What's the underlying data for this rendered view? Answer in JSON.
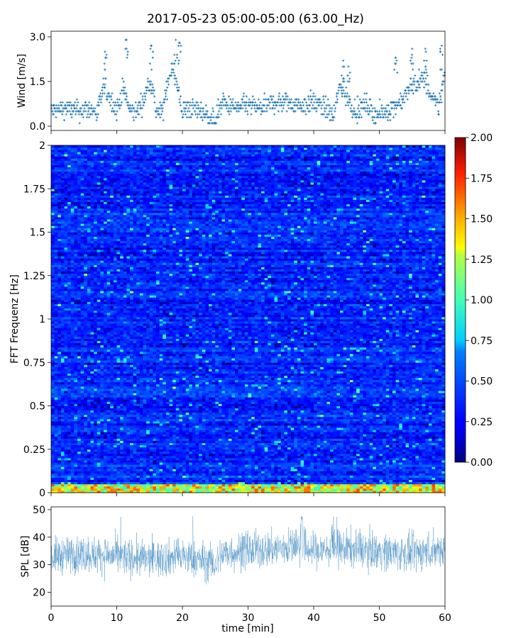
{
  "title": "2017-05-23 05:00-05:00 (63.00_Hz)",
  "chart_data": [
    {
      "id": "wind",
      "type": "scatter",
      "ylabel": "Wind [m/s]",
      "ylim": [
        0,
        3.0
      ],
      "yticks": [
        "0.0",
        "1.5",
        "3.0"
      ],
      "xlim": [
        0,
        60
      ],
      "marker": "+",
      "color": "#1f77b4",
      "x_profile": [
        0,
        2,
        4,
        6,
        7,
        8,
        9,
        10,
        11,
        12,
        13,
        14,
        15,
        15.5,
        16,
        17,
        18,
        18.5,
        19,
        20,
        21,
        23,
        24,
        25,
        26,
        27,
        28,
        30,
        32,
        34,
        36,
        38,
        40,
        42,
        43,
        44,
        45,
        46,
        47,
        48,
        49,
        50,
        52,
        54,
        55,
        56,
        57,
        58,
        58.5,
        59,
        60
      ],
      "y_profile": [
        0.5,
        0.6,
        0.5,
        0.6,
        0.4,
        1.3,
        1.0,
        0.5,
        1.3,
        0.5,
        0.5,
        0.8,
        1.6,
        1.2,
        0.5,
        0.5,
        1.7,
        2.1,
        1.5,
        0.5,
        0.6,
        0.5,
        0.3,
        0.2,
        0.8,
        0.7,
        0.6,
        0.7,
        0.6,
        0.8,
        0.8,
        0.7,
        0.8,
        0.6,
        0.3,
        1.4,
        1.0,
        0.6,
        0.5,
        0.8,
        0.4,
        0.4,
        0.6,
        1.0,
        1.4,
        1.5,
        1.6,
        0.9,
        0.8,
        0.6,
        1.8
      ],
      "peaks": [
        [
          8.2,
          2.5
        ],
        [
          11.5,
          2.9
        ],
        [
          15.3,
          2.7
        ],
        [
          19.0,
          2.9
        ],
        [
          19.6,
          2.8
        ],
        [
          44.5,
          2.2
        ],
        [
          45.3,
          2.0
        ],
        [
          52.5,
          2.3
        ],
        [
          55.0,
          2.6
        ],
        [
          57.0,
          2.6
        ],
        [
          59.5,
          2.7
        ]
      ]
    },
    {
      "id": "spectrogram",
      "type": "heatmap",
      "ylabel": "FFT Frequenz [Hz]",
      "ylim": [
        0,
        2
      ],
      "yticks": [
        "0",
        "0.25",
        "0.5",
        "0.75",
        "1",
        "1.25",
        "1.5",
        "1.75",
        "2"
      ],
      "xlim": [
        0,
        60
      ],
      "colormap": "jet",
      "clim": [
        0,
        2.0
      ],
      "colorbar_ticks": [
        "0.00",
        "0.25",
        "0.50",
        "0.75",
        "1.00",
        "1.25",
        "1.50",
        "1.75",
        "2.00"
      ],
      "typical_level": 0.35,
      "low_frequency_level": 1.3,
      "low_frequency_band_hz": [
        0,
        0.05
      ]
    },
    {
      "id": "spl",
      "type": "line",
      "ylabel": "SPL [dB]",
      "xlabel": "time [min]",
      "ylim": [
        15,
        51
      ],
      "yticks": [
        "20",
        "30",
        "40",
        "50"
      ],
      "xlim": [
        0,
        60
      ],
      "xticks": [
        "0",
        "10",
        "20",
        "30",
        "40",
        "50",
        "60"
      ],
      "color": "#1f77b4",
      "mean_profile_x": [
        0,
        5,
        10,
        15,
        20,
        24,
        25,
        26,
        30,
        35,
        38,
        40,
        45,
        50,
        55,
        60
      ],
      "mean_profile_y": [
        33,
        34,
        33,
        32,
        33,
        31,
        30,
        34,
        35,
        36,
        37,
        35,
        36,
        35,
        34,
        36
      ],
      "spread_db": 6,
      "max_db": 48
    }
  ]
}
